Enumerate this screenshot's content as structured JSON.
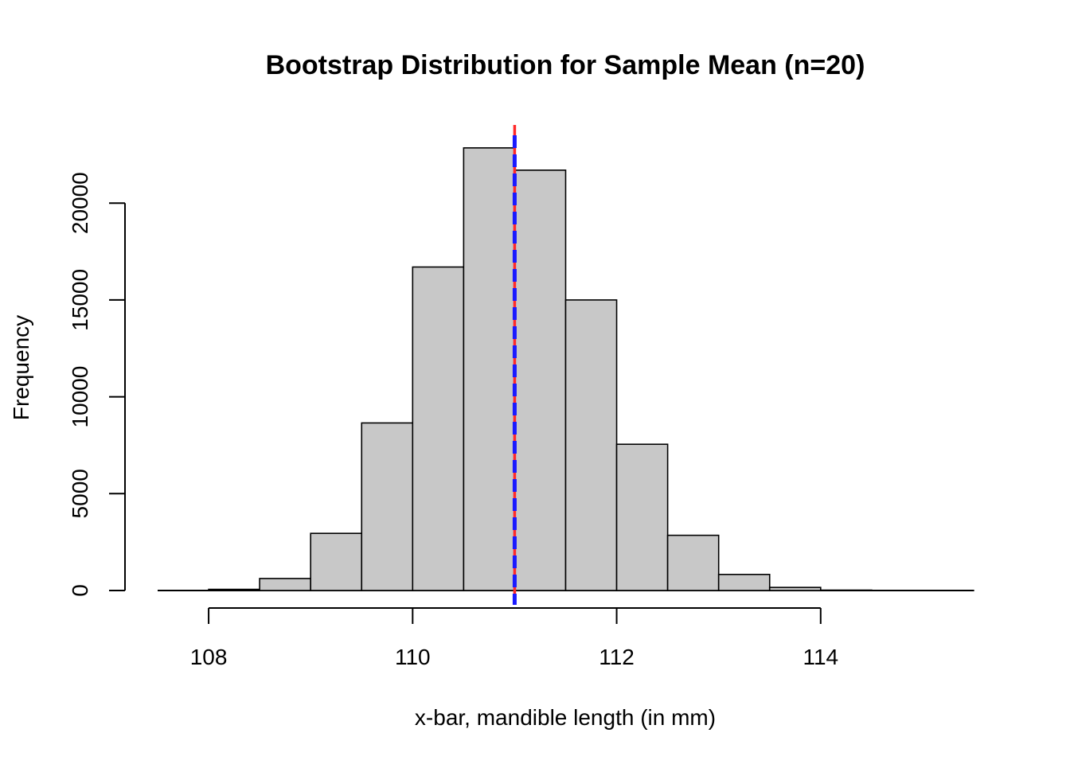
{
  "chart_data": {
    "type": "bar",
    "title": "Bootstrap Distribution for Sample Mean (n=20)",
    "xlabel": "x-bar, mandible length (in mm)",
    "ylabel": "Frequency",
    "bin_width": 0.5,
    "bins": [
      {
        "start": 108.0,
        "end": 108.5,
        "count": 60
      },
      {
        "start": 108.5,
        "end": 109.0,
        "count": 620
      },
      {
        "start": 109.0,
        "end": 109.5,
        "count": 2950
      },
      {
        "start": 109.5,
        "end": 110.0,
        "count": 8650
      },
      {
        "start": 110.0,
        "end": 110.5,
        "count": 16700
      },
      {
        "start": 110.5,
        "end": 111.0,
        "count": 22850
      },
      {
        "start": 111.0,
        "end": 111.5,
        "count": 21700
      },
      {
        "start": 111.5,
        "end": 112.0,
        "count": 15000
      },
      {
        "start": 112.0,
        "end": 112.5,
        "count": 7550
      },
      {
        "start": 112.5,
        "end": 113.0,
        "count": 2850
      },
      {
        "start": 113.0,
        "end": 113.5,
        "count": 830
      },
      {
        "start": 113.5,
        "end": 114.0,
        "count": 160
      },
      {
        "start": 114.0,
        "end": 114.5,
        "count": 20
      },
      {
        "start": 114.5,
        "end": 115.0,
        "count": 3
      },
      {
        "start": 115.0,
        "end": 115.5,
        "count": 1
      }
    ],
    "xlim": [
      107.5,
      115.5
    ],
    "ylim": [
      0,
      23500
    ],
    "x_ticks": [
      108,
      110,
      112,
      114
    ],
    "x_tick_labels": [
      "108",
      "110",
      "112",
      "114"
    ],
    "y_ticks": [
      0,
      5000,
      10000,
      15000,
      20000
    ],
    "y_tick_labels": [
      "0",
      "5000",
      "10000",
      "15000",
      "20000"
    ],
    "reference_lines": [
      {
        "x": 111.0,
        "color": "#ff2a2a",
        "style": "solid"
      },
      {
        "x": 111.0,
        "color": "#1a1aff",
        "style": "dashed"
      }
    ],
    "grid": false,
    "bar_color": "#c8c8c8"
  }
}
